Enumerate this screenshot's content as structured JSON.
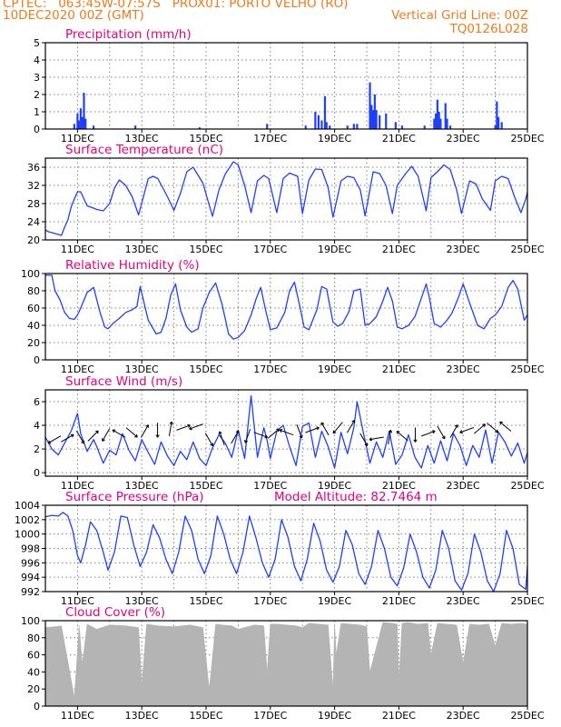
{
  "header": {
    "line1_left": "CPTEC:   063:45W-07:57S   PROX01: PORTO VELHO (RO)",
    "line2_left": "10DEC2020 00Z (GMT)",
    "line2_right": "Vertical Grid Line: 00Z",
    "line3_right": "TQ0126L028"
  },
  "colors": {
    "header": "#ee7b1c",
    "title": "#e6007e",
    "series": "#1f3fff",
    "wind_arrows": "#000000",
    "cloud_fill": "#b4b4b4",
    "grid": "#808080"
  },
  "x_axis": {
    "tick_labels": [
      "11DEC",
      "13DEC",
      "15DEC",
      "17DEC",
      "19DEC",
      "21DEC",
      "23DEC",
      "25DEC"
    ],
    "tick_days": [
      11,
      13,
      15,
      17,
      19,
      21,
      23,
      25
    ],
    "range_days": [
      10,
      25
    ],
    "minor_grid_every_days": 1
  },
  "chart_data": [
    {
      "type": "bar",
      "title": "Precipitation (mm/h)",
      "ylim": [
        0,
        5
      ],
      "yticks": [
        0,
        1,
        2,
        3,
        4,
        5
      ],
      "grid": true,
      "bars": [
        [
          10.9,
          0.3
        ],
        [
          11.0,
          0.9
        ],
        [
          11.05,
          0.5
        ],
        [
          11.1,
          1.2
        ],
        [
          11.15,
          0.7
        ],
        [
          11.2,
          2.1
        ],
        [
          11.25,
          0.6
        ],
        [
          11.5,
          0.2
        ],
        [
          12.8,
          0.2
        ],
        [
          14.8,
          0.1
        ],
        [
          16.9,
          0.3
        ],
        [
          18.1,
          0.2
        ],
        [
          18.4,
          1.0
        ],
        [
          18.5,
          0.8
        ],
        [
          18.6,
          0.5
        ],
        [
          18.7,
          1.9
        ],
        [
          18.75,
          0.4
        ],
        [
          18.85,
          0.2
        ],
        [
          19.4,
          0.2
        ],
        [
          19.6,
          0.3
        ],
        [
          19.7,
          0.3
        ],
        [
          20.1,
          2.7
        ],
        [
          20.15,
          1.4
        ],
        [
          20.2,
          1.1
        ],
        [
          20.25,
          2.0
        ],
        [
          20.3,
          1.1
        ],
        [
          20.4,
          0.8
        ],
        [
          20.6,
          0.9
        ],
        [
          20.9,
          0.4
        ],
        [
          21.1,
          0.2
        ],
        [
          21.8,
          0.2
        ],
        [
          22.1,
          0.6
        ],
        [
          22.15,
          0.9
        ],
        [
          22.2,
          1.7
        ],
        [
          22.25,
          1.0
        ],
        [
          22.3,
          0.6
        ],
        [
          22.45,
          1.5
        ],
        [
          22.5,
          0.6
        ],
        [
          22.6,
          0.2
        ],
        [
          24.0,
          0.2
        ],
        [
          24.05,
          1.6
        ],
        [
          24.1,
          0.7
        ],
        [
          24.2,
          0.4
        ]
      ]
    },
    {
      "type": "line",
      "title": "Surface Temperature (nC)",
      "ylim": [
        20,
        38
      ],
      "yticks": [
        20,
        24,
        28,
        32,
        36
      ],
      "grid": true,
      "x": [
        10.0,
        10.1,
        10.3,
        10.5,
        10.6,
        10.7,
        10.8,
        10.9,
        11.0,
        11.1,
        11.2,
        11.3,
        11.5,
        11.6,
        11.8,
        12.0,
        12.15,
        12.3,
        12.5,
        12.7,
        12.9,
        13.2,
        13.35,
        13.5,
        13.8,
        14.0,
        14.2,
        14.4,
        14.6,
        14.9,
        15.2,
        15.4,
        15.6,
        15.85,
        16.0,
        16.2,
        16.4,
        16.6,
        16.8,
        16.95,
        17.2,
        17.4,
        17.6,
        17.85,
        18.0,
        18.2,
        18.4,
        18.6,
        18.8,
        18.95,
        19.2,
        19.4,
        19.6,
        19.8,
        19.95,
        20.2,
        20.4,
        20.6,
        20.8,
        20.95,
        21.2,
        21.4,
        21.6,
        21.85,
        22.0,
        22.2,
        22.4,
        22.6,
        22.8,
        22.95,
        23.2,
        23.4,
        23.6,
        23.85,
        24.0,
        24.2,
        24.4,
        24.6,
        24.8,
        24.95,
        25.0
      ],
      "values": [
        22.2,
        21.8,
        21.4,
        21.0,
        22.8,
        24.4,
        27.2,
        29.0,
        30.6,
        30.6,
        29.0,
        27.5,
        27.0,
        26.7,
        26.4,
        28.0,
        31.4,
        33.2,
        32.0,
        29.5,
        25.5,
        33.5,
        34.0,
        33.5,
        29.5,
        26.5,
        30.2,
        35.0,
        36.0,
        32.5,
        25.2,
        31.0,
        34.5,
        37.2,
        36.5,
        32.0,
        26.0,
        33.0,
        34.2,
        33.5,
        26.0,
        33.5,
        34.7,
        34.0,
        25.8,
        33.2,
        35.6,
        35.5,
        31.5,
        25.0,
        33.0,
        34.0,
        33.7,
        31.0,
        25.3,
        35.0,
        34.6,
        32.0,
        25.8,
        32.0,
        34.5,
        36.2,
        34.0,
        26.4,
        33.7,
        35.0,
        36.5,
        35.5,
        31.0,
        25.8,
        33.0,
        32.3,
        29.0,
        26.5,
        33.0,
        34.0,
        33.5,
        29.5,
        26.0,
        29.0,
        30.5
      ]
    },
    {
      "type": "line",
      "title": "Relative Humidity (%)",
      "ylim": [
        0,
        100
      ],
      "yticks": [
        0,
        20,
        40,
        60,
        80,
        100
      ],
      "grid": true,
      "x": [
        10.0,
        10.2,
        10.3,
        10.45,
        10.6,
        10.75,
        10.9,
        11.0,
        11.1,
        11.3,
        11.5,
        11.7,
        11.85,
        11.95,
        12.1,
        12.3,
        12.5,
        12.7,
        12.85,
        12.95,
        13.2,
        13.45,
        13.6,
        13.75,
        13.9,
        14.05,
        14.2,
        14.4,
        14.55,
        14.75,
        14.9,
        15.1,
        15.3,
        15.5,
        15.7,
        15.85,
        16.0,
        16.2,
        16.4,
        16.55,
        16.7,
        16.85,
        17.0,
        17.2,
        17.45,
        17.6,
        17.75,
        17.9,
        18.05,
        18.2,
        18.45,
        18.6,
        18.75,
        18.95,
        19.1,
        19.25,
        19.45,
        19.6,
        19.8,
        19.95,
        20.1,
        20.3,
        20.5,
        20.65,
        20.8,
        20.95,
        21.1,
        21.3,
        21.5,
        21.65,
        21.85,
        21.95,
        22.1,
        22.3,
        22.5,
        22.65,
        22.85,
        23.0,
        23.2,
        23.45,
        23.65,
        23.85,
        24.0,
        24.2,
        24.4,
        24.55,
        24.7,
        24.9,
        25.0
      ],
      "values": [
        98,
        98,
        80,
        70,
        55,
        48,
        47,
        52,
        60,
        78,
        84,
        55,
        38,
        36,
        42,
        48,
        55,
        58,
        62,
        85,
        46,
        30,
        32,
        48,
        75,
        88,
        58,
        38,
        32,
        36,
        60,
        78,
        89,
        64,
        30,
        24,
        26,
        34,
        52,
        70,
        84,
        58,
        35,
        37,
        55,
        80,
        90,
        65,
        38,
        35,
        58,
        85,
        82,
        44,
        39,
        42,
        56,
        80,
        82,
        40,
        42,
        50,
        68,
        84,
        68,
        38,
        36,
        40,
        50,
        66,
        88,
        72,
        42,
        38,
        46,
        54,
        72,
        88,
        66,
        40,
        36,
        48,
        52,
        62,
        84,
        92,
        82,
        46,
        52
      ]
    },
    {
      "type": "line",
      "title": "Surface Wind (m/s)",
      "ylim": [
        -0.3,
        7
      ],
      "yticks": [
        0,
        2,
        4,
        6
      ],
      "grid": true,
      "x": [
        10.0,
        10.2,
        10.4,
        10.6,
        10.8,
        11.0,
        11.1,
        11.3,
        11.5,
        11.6,
        11.8,
        12.0,
        12.2,
        12.4,
        12.6,
        12.8,
        13.0,
        13.2,
        13.4,
        13.6,
        13.8,
        14.0,
        14.2,
        14.4,
        14.6,
        14.8,
        15.0,
        15.2,
        15.4,
        15.6,
        15.8,
        16.0,
        16.2,
        16.4,
        16.6,
        16.8,
        16.9,
        17.0,
        17.2,
        17.4,
        17.6,
        17.8,
        18.0,
        18.2,
        18.4,
        18.6,
        18.8,
        19.0,
        19.2,
        19.4,
        19.6,
        19.7,
        19.9,
        20.1,
        20.3,
        20.5,
        20.7,
        20.9,
        21.1,
        21.3,
        21.5,
        21.7,
        21.9,
        22.1,
        22.3,
        22.5,
        22.7,
        22.9,
        23.1,
        23.3,
        23.5,
        23.7,
        23.9,
        24.1,
        24.3,
        24.5,
        24.7,
        24.9,
        25.0
      ],
      "values": [
        3.0,
        2.0,
        1.5,
        2.5,
        3.5,
        5.0,
        3.3,
        1.8,
        2.8,
        2.2,
        0.8,
        1.9,
        1.5,
        3.3,
        1.9,
        1.0,
        2.8,
        1.7,
        0.7,
        2.6,
        1.4,
        0.6,
        1.8,
        1.1,
        2.6,
        1.2,
        0.6,
        2.1,
        3.2,
        2.5,
        1.3,
        3.6,
        1.2,
        6.5,
        1.3,
        3.8,
        2.7,
        1.2,
        3.5,
        4.0,
        2.2,
        0.6,
        3.9,
        4.2,
        1.3,
        3.5,
        2.2,
        0.4,
        3.4,
        1.6,
        3.8,
        6.0,
        3.3,
        0.8,
        2.6,
        1.3,
        3.5,
        0.7,
        1.5,
        3.2,
        1.3,
        0.4,
        2.3,
        0.8,
        2.7,
        1.0,
        3.3,
        2.3,
        0.6,
        2.3,
        1.3,
        3.6,
        0.8,
        3.4,
        2.6,
        1.4,
        2.5,
        0.8,
        1.7
      ]
    },
    {
      "type": "line",
      "title": "Surface Pressure (hPa)",
      "subtitle": "Model Altitude: 82.7464 m",
      "ylim": [
        992,
        1004
      ],
      "yticks": [
        992,
        994,
        996,
        998,
        1000,
        1002,
        1004
      ],
      "grid": true,
      "x": [
        10.0,
        10.2,
        10.4,
        10.55,
        10.7,
        10.85,
        11.0,
        11.1,
        11.25,
        11.4,
        11.6,
        11.8,
        11.95,
        12.15,
        12.35,
        12.55,
        12.75,
        12.95,
        13.15,
        13.35,
        13.55,
        13.75,
        13.95,
        14.15,
        14.35,
        14.55,
        14.75,
        14.95,
        15.15,
        15.35,
        15.55,
        15.75,
        15.95,
        16.15,
        16.35,
        16.55,
        16.75,
        16.95,
        17.15,
        17.35,
        17.55,
        17.75,
        17.95,
        18.15,
        18.35,
        18.55,
        18.75,
        18.95,
        19.15,
        19.35,
        19.55,
        19.75,
        19.95,
        20.15,
        20.35,
        20.55,
        20.75,
        20.95,
        21.15,
        21.35,
        21.55,
        21.75,
        21.95,
        22.15,
        22.35,
        22.55,
        22.75,
        22.95,
        23.15,
        23.35,
        23.55,
        23.75,
        23.95,
        24.15,
        24.35,
        24.55,
        24.75,
        24.95,
        25.0
      ],
      "values": [
        1002.4,
        1002.6,
        1002.5,
        1003.0,
        1002.5,
        1000.5,
        997.0,
        996.0,
        998.5,
        1001.7,
        1000.5,
        997.5,
        995.0,
        997.5,
        1002.5,
        1002.3,
        998.5,
        995.5,
        997.5,
        1001.3,
        999.5,
        996.5,
        994.5,
        997.5,
        1002.5,
        1000.5,
        996.5,
        994.5,
        997.0,
        1002.5,
        1000.0,
        996.5,
        994.5,
        997.5,
        1002.5,
        999.5,
        996.0,
        994.0,
        996.5,
        1002.0,
        999.5,
        995.5,
        993.5,
        996.5,
        1001.5,
        999.0,
        995.0,
        993.3,
        995.5,
        1000.5,
        998.5,
        994.5,
        993.0,
        995.5,
        1000.5,
        998.0,
        994.0,
        992.8,
        995.3,
        1000.0,
        997.5,
        994.0,
        992.5,
        995.0,
        1000.5,
        998.0,
        993.5,
        992.2,
        994.5,
        1000.0,
        997.5,
        993.5,
        992.0,
        994.5,
        1000.5,
        998.0,
        993.0,
        992.3,
        995.5
      ]
    },
    {
      "type": "area",
      "title": "Cloud Cover (%)",
      "ylim": [
        0,
        100
      ],
      "yticks": [
        0,
        20,
        40,
        60,
        80,
        100
      ],
      "grid": true,
      "x": [
        10.0,
        10.3,
        10.5,
        10.9,
        11.05,
        11.15,
        11.3,
        11.6,
        12.0,
        12.5,
        12.9,
        13.0,
        13.15,
        13.5,
        14.0,
        14.5,
        14.9,
        15.1,
        15.3,
        15.5,
        15.8,
        16.0,
        16.5,
        16.8,
        16.9,
        17.0,
        17.2,
        17.5,
        17.8,
        18.0,
        18.2,
        18.5,
        18.8,
        18.95,
        19.0,
        19.05,
        19.2,
        19.5,
        19.8,
        20.0,
        20.1,
        20.5,
        20.8,
        20.95,
        21.0,
        21.1,
        21.3,
        21.6,
        21.9,
        22.0,
        22.2,
        22.5,
        22.8,
        23.0,
        23.2,
        23.5,
        23.8,
        24.0,
        24.2,
        24.5,
        24.8,
        25.0
      ],
      "values": [
        92,
        93,
        94,
        10,
        95,
        50,
        96,
        90,
        95,
        94,
        92,
        25,
        96,
        94,
        93,
        95,
        92,
        20,
        96,
        95,
        94,
        90,
        95,
        94,
        40,
        96,
        96,
        95,
        94,
        92,
        97,
        96,
        95,
        20,
        96,
        60,
        97,
        96,
        95,
        93,
        40,
        98,
        97,
        96,
        30,
        97,
        98,
        96,
        97,
        60,
        97,
        96,
        95,
        50,
        96,
        95,
        96,
        70,
        97,
        96,
        97,
        96
      ]
    }
  ]
}
